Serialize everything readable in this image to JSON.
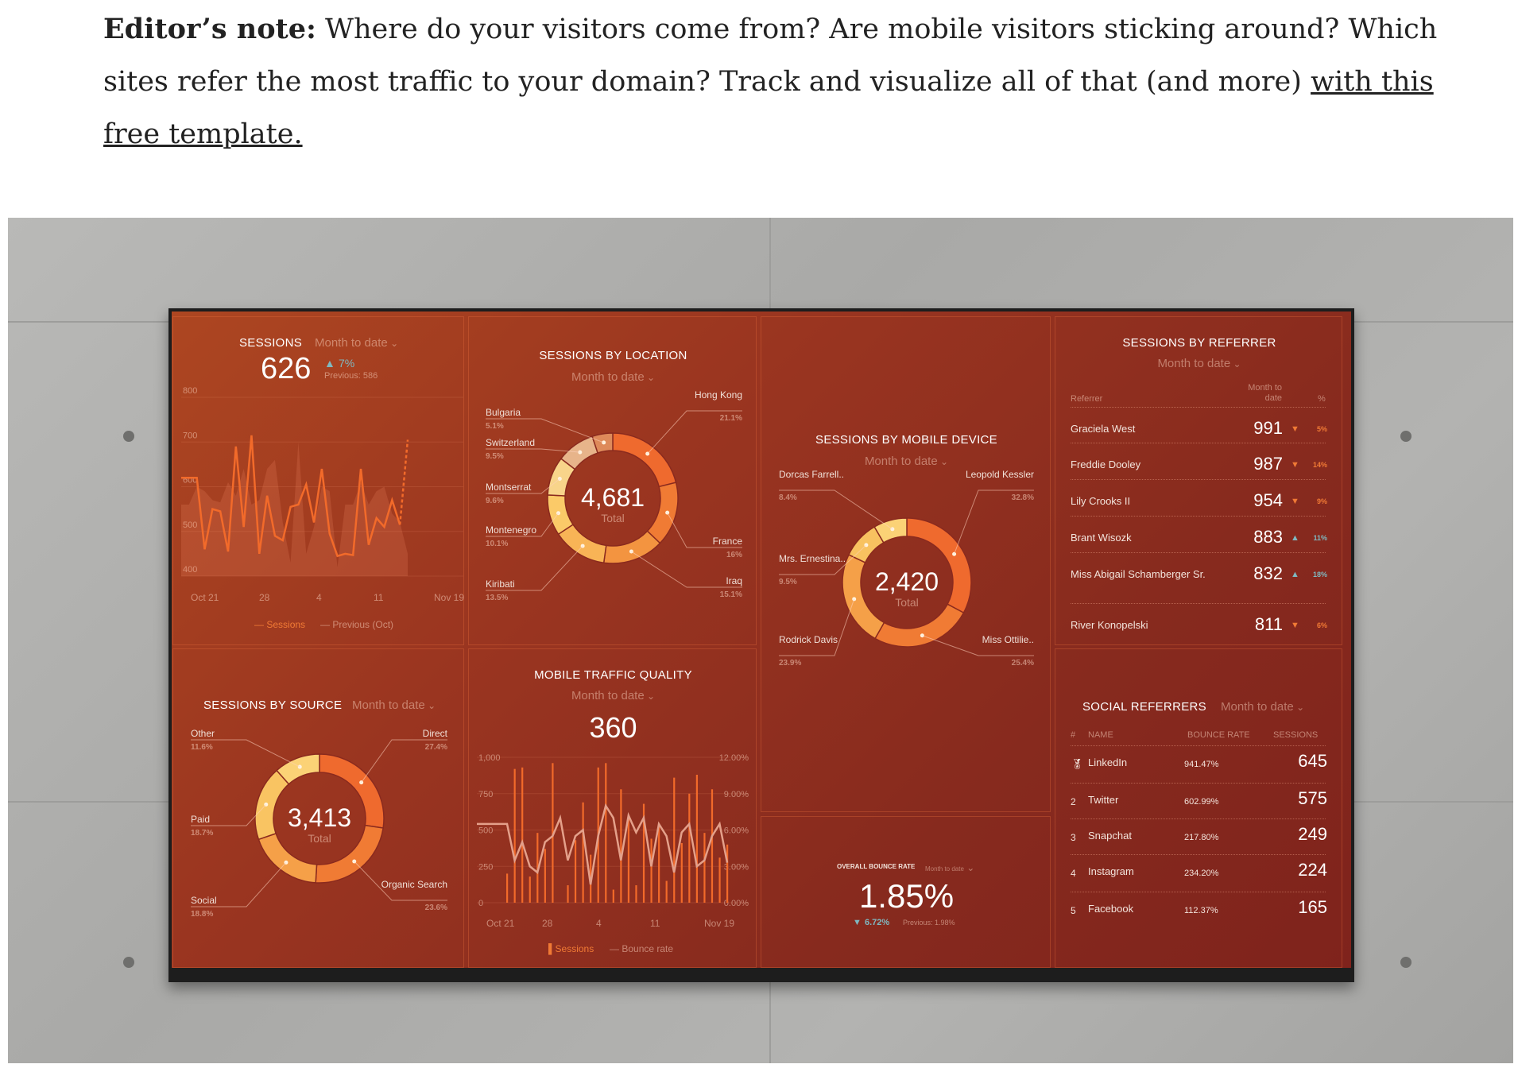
{
  "article": {
    "note_label": "Editor’s note:",
    "note_text": " Where do your visitors come from?  Are mobile visitors sticking around? Which sites refer the most traffic to your domain? Track and visualize all of that (and more) ",
    "link_text": "with this free template."
  },
  "colors": {
    "panel_bg": "#8a2a1e",
    "accent": "#f06a30",
    "positive": "#7fb8c0",
    "negative": "#f07a35"
  },
  "dashboard": {
    "dropdown": "Month to date",
    "sessions": {
      "title": "SESSIONS",
      "value": "626",
      "delta": "7%",
      "delta_dir": "up",
      "previous": "Previous: 586",
      "legend": [
        "Sessions",
        "Previous (Oct)"
      ]
    },
    "location": {
      "title": "SESSIONS BY LOCATION",
      "total": "4,681",
      "total_label": "Total"
    },
    "mobile_device": {
      "title": "SESSIONS BY MOBILE DEVICE",
      "total": "2,420",
      "total_label": "Total"
    },
    "referrer": {
      "title": "SESSIONS BY REFERRER",
      "headers": [
        "Referrer",
        "Month to date",
        "%"
      ],
      "rows": [
        {
          "name": "Graciela West",
          "value": "991",
          "change": "5%",
          "dir": "down"
        },
        {
          "name": "Freddie Dooley",
          "value": "987",
          "change": "14%",
          "dir": "down"
        },
        {
          "name": "Lily Crooks II",
          "value": "954",
          "change": "9%",
          "dir": "down"
        },
        {
          "name": "Brant Wisozk",
          "value": "883",
          "change": "11%",
          "dir": "up"
        },
        {
          "name": "Miss Abigail Schamberger Sr.",
          "value": "832",
          "change": "18%",
          "dir": "up"
        },
        {
          "name": "River Konopelski",
          "value": "811",
          "change": "6%",
          "dir": "down"
        }
      ]
    },
    "source": {
      "title": "SESSIONS BY SOURCE",
      "total": "3,413",
      "total_label": "Total"
    },
    "mobile_traffic": {
      "title": "MOBILE TRAFFIC QUALITY",
      "value": "360",
      "legend": [
        "Sessions",
        "Bounce rate"
      ]
    },
    "bounce": {
      "title": "OVERALL BOUNCE RATE",
      "value": "1.85%",
      "delta": "6.72%",
      "delta_dir": "down",
      "previous": "Previous: 1.98%"
    },
    "social": {
      "title": "SOCIAL REFERRERS",
      "headers": [
        "#",
        "NAME",
        "BOUNCE RATE",
        "SESSIONS"
      ],
      "rows": [
        {
          "rank": "medal-icon",
          "name": "LinkedIn",
          "bounce": "941.47%",
          "sessions": "645"
        },
        {
          "rank": "2",
          "name": "Twitter",
          "bounce": "602.99%",
          "sessions": "575"
        },
        {
          "rank": "3",
          "name": "Snapchat",
          "bounce": "217.80%",
          "sessions": "249"
        },
        {
          "rank": "4",
          "name": "Instagram",
          "bounce": "234.20%",
          "sessions": "224"
        },
        {
          "rank": "5",
          "name": "Facebook",
          "bounce": "112.37%",
          "sessions": "165"
        }
      ]
    }
  },
  "chart_data": [
    {
      "type": "line",
      "ylim": [
        400,
        800
      ],
      "yticks": [
        "800",
        "700",
        "600",
        "500",
        "400"
      ],
      "xticks": [
        "Oct 21",
        "28",
        "4",
        "11",
        "Nov 19"
      ],
      "series": [
        {
          "name": "Sessions",
          "values": [
            620,
            620,
            620,
            460,
            550,
            545,
            455,
            690,
            510,
            715,
            450,
            580,
            490,
            480,
            555,
            560,
            605,
            520,
            640,
            495,
            445,
            450,
            447,
            640,
            470,
            530,
            510,
            570,
            515,
            705
          ]
        },
        {
          "name": "Previous (Oct)",
          "values": [
            560,
            560,
            600,
            590,
            570,
            565,
            610,
            580,
            640,
            560,
            570,
            640,
            660,
            520,
            430,
            700,
            450,
            510,
            600,
            590,
            420,
            560,
            560,
            610,
            560,
            590,
            600,
            540,
            520,
            450
          ]
        }
      ]
    },
    {
      "type": "pie",
      "total": "4,681",
      "slices": [
        {
          "label": "Hong Kong",
          "value": 21.1,
          "pct": "21.1%",
          "color": "#ef6a2e",
          "side": "right"
        },
        {
          "label": "France",
          "value": 16,
          "pct": "16%",
          "color": "#f07b34",
          "side": "right"
        },
        {
          "label": "Iraq",
          "value": 15.1,
          "pct": "15.1%",
          "color": "#f39440",
          "side": "right"
        },
        {
          "label": "Kiribati",
          "value": 13.5,
          "pct": "13.5%",
          "color": "#f8b456",
          "side": "left"
        },
        {
          "label": "Montenegro",
          "value": 10.1,
          "pct": "10.1%",
          "color": "#fbca68",
          "side": "left"
        },
        {
          "label": "Montserrat",
          "value": 9.6,
          "pct": "9.6%",
          "color": "#f8d48a",
          "side": "left"
        },
        {
          "label": "Switzerland",
          "value": 9.5,
          "pct": "9.5%",
          "color": "#e7b48a",
          "side": "left"
        },
        {
          "label": "Bulgaria",
          "value": 5.1,
          "pct": "5.1%",
          "color": "#de8a5a",
          "side": "left"
        }
      ]
    },
    {
      "type": "pie",
      "total": "2,420",
      "slices": [
        {
          "label": "Leopold Kessler",
          "value": 32.8,
          "pct": "32.8%",
          "color": "#ef6a2e",
          "side": "right"
        },
        {
          "label": "Miss Ottilie..",
          "value": 25.4,
          "pct": "25.4%",
          "color": "#f07b34",
          "side": "right"
        },
        {
          "label": "Rodrick Davis",
          "value": 23.9,
          "pct": "23.9%",
          "color": "#f5a048",
          "side": "left"
        },
        {
          "label": "Mrs. Ernestina..",
          "value": 9.5,
          "pct": "9.5%",
          "color": "#f8c260",
          "side": "left"
        },
        {
          "label": "Dorcas Farrell..",
          "value": 8.4,
          "pct": "8.4%",
          "color": "#fbd276",
          "side": "left"
        }
      ]
    },
    {
      "type": "pie",
      "total": "3,413",
      "slices": [
        {
          "label": "Direct",
          "value": 27.4,
          "pct": "27.4%",
          "color": "#ef6a2e",
          "side": "right"
        },
        {
          "label": "Organic Search",
          "value": 23.6,
          "pct": "23.6%",
          "color": "#f07b34",
          "side": "right"
        },
        {
          "label": "Social",
          "value": 18.8,
          "pct": "18.8%",
          "color": "#f5a048",
          "side": "left"
        },
        {
          "label": "Paid",
          "value": 18.7,
          "pct": "18.7%",
          "color": "#f9c462",
          "side": "left"
        },
        {
          "label": "Other",
          "value": 11.6,
          "pct": "11.6%",
          "color": "#fbd276",
          "side": "left"
        }
      ]
    },
    {
      "type": "bar",
      "ylim": [
        0,
        1000
      ],
      "y2lim": [
        0,
        12
      ],
      "yticks": [
        "1,000",
        "750",
        "500",
        "250",
        "0"
      ],
      "y2ticks": [
        "12.00%",
        "9.00%",
        "6.00%",
        "3.00%",
        "0.00%"
      ],
      "xticks": [
        "Oct 21",
        "28",
        "4",
        "11",
        "Nov 19"
      ],
      "series": [
        {
          "name": "Sessions",
          "values": [
            200,
            920,
            930,
            180,
            480,
            370,
            960,
            0,
            120,
            430,
            690,
            330,
            930,
            960,
            90,
            780,
            580,
            120,
            680,
            440,
            530,
            150,
            860,
            410,
            750,
            880,
            480,
            780,
            310,
            400
          ]
        },
        {
          "name": "Bounce rate",
          "values": [
            6.5,
            3.5,
            5.0,
            3.0,
            2.5,
            5.0,
            5.5,
            7.0,
            3.5,
            5.5,
            6.0,
            1.5,
            5.5,
            8.0,
            7.0,
            3.5,
            7.2,
            5.8,
            7.0,
            3.0,
            6.5,
            5.5,
            2.5,
            5.8,
            6.5,
            3.0,
            3.5,
            5.5,
            6.5,
            3.3
          ]
        }
      ]
    }
  ]
}
